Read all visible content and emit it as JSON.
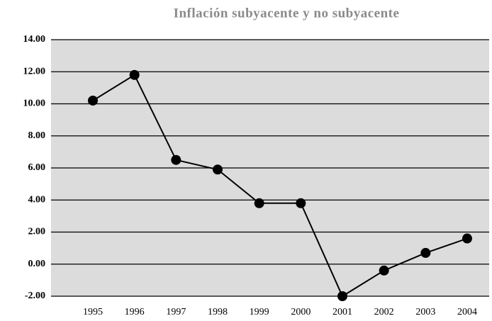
{
  "chart_data": {
    "type": "line",
    "title": "Inflación subyacente y no subyacente",
    "categories": [
      "1995",
      "1996",
      "1997",
      "1998",
      "1999",
      "2000",
      "2001",
      "2002",
      "2003",
      "2004"
    ],
    "series": [
      {
        "color": "#000000",
        "values": [
          10.2,
          11.8,
          6.5,
          5.9,
          3.8,
          3.8,
          -2.0,
          -0.4,
          0.7,
          1.6
        ]
      }
    ],
    "ylim": [
      -2,
      14
    ],
    "yticks": [
      {
        "value": -2,
        "label": "-2.00"
      },
      {
        "value": 0,
        "label": "0.00"
      },
      {
        "value": 2,
        "label": "2.00"
      },
      {
        "value": 4,
        "label": "4.00"
      },
      {
        "value": 6,
        "label": "6.00"
      },
      {
        "value": 8,
        "label": "8.00"
      },
      {
        "value": 10,
        "label": "10.00"
      },
      {
        "value": 12,
        "label": "12.00"
      },
      {
        "value": 14,
        "label": "14.00"
      }
    ],
    "grid": true
  }
}
